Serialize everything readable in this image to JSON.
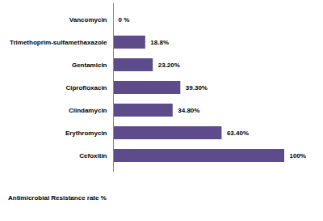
{
  "chart_data": {
    "type": "bar",
    "orientation": "horizontal",
    "xlabel": "Antimicrobial Resistance rate %",
    "categories": [
      "Vancomycin",
      "Trimethoprim-sulfamethaxazole",
      "Gentamicin",
      "Ciprofloxacin",
      "Clindamycin",
      "Erythromycin",
      "Cefoxitin"
    ],
    "values": [
      0,
      18.8,
      23.2,
      39.3,
      34.8,
      63.4,
      100
    ],
    "value_labels": [
      "0 %",
      "18.8%",
      "23.20%",
      "39.30%",
      "34.80%",
      "63.40%",
      "100%"
    ],
    "color": "#5e4b8b",
    "xlim": [
      0,
      100
    ],
    "xticks": [],
    "grid": false,
    "data_labels": true,
    "tick_labels": "y"
  }
}
